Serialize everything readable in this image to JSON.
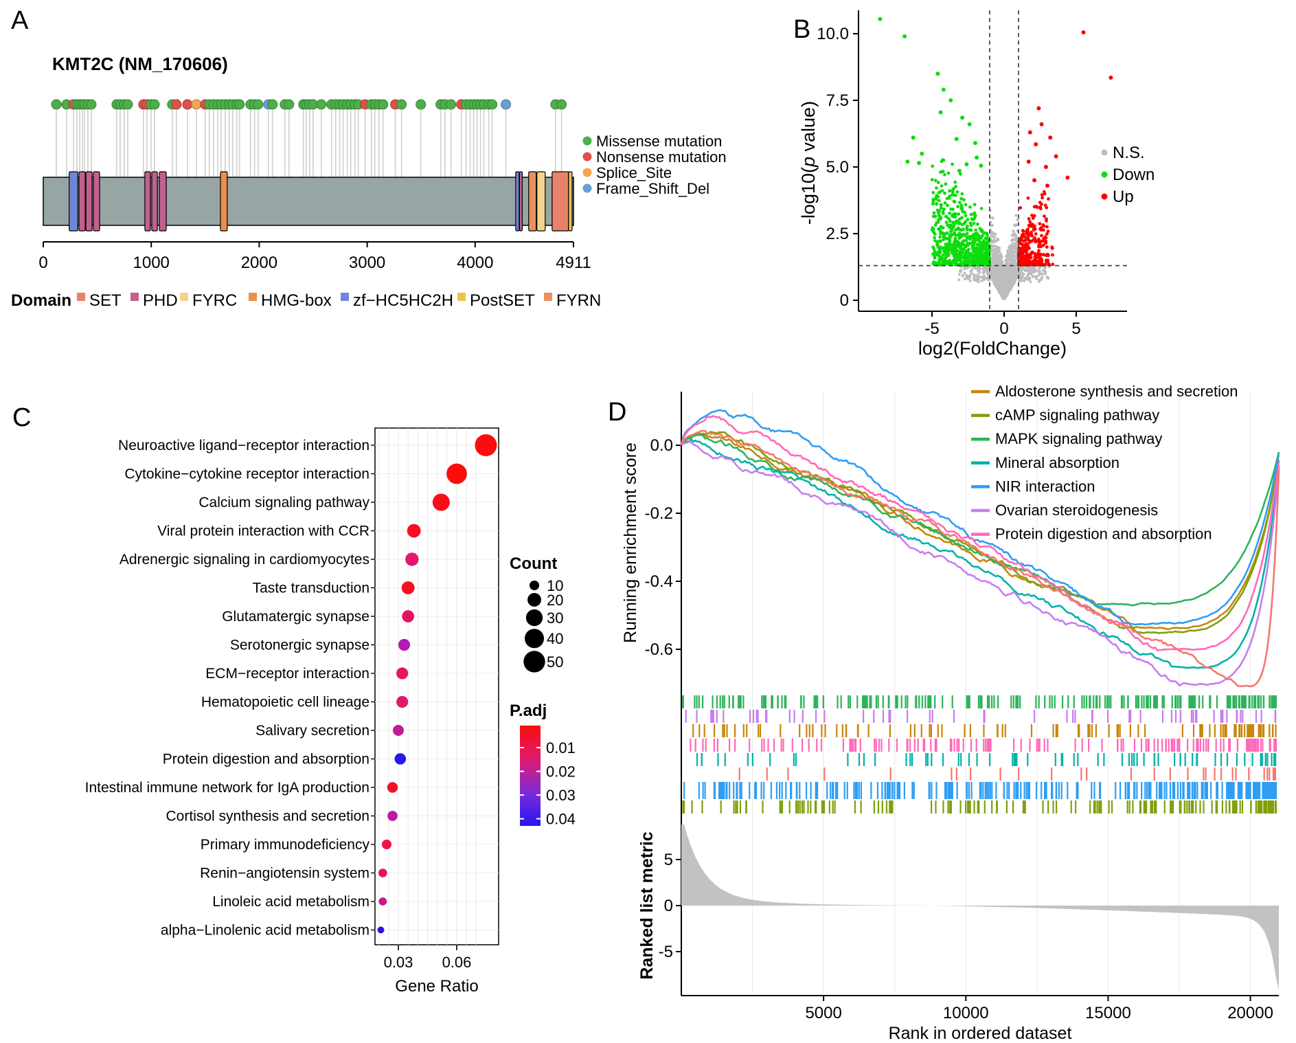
{
  "figure": {
    "background": "#ffffff"
  },
  "chart_data": [
    {
      "type": "lollipop",
      "panel_label": "A",
      "title": "KMT2C (NM_170606)",
      "protein_length": 4911,
      "x_ticks": [
        {
          "v": 0,
          "label": "0"
        },
        {
          "v": 1000,
          "label": "1000"
        },
        {
          "v": 2000,
          "label": "2000"
        },
        {
          "v": 3000,
          "label": "3000"
        },
        {
          "v": 4000,
          "label": "4000"
        },
        {
          "v": 4911,
          "label": "4911"
        }
      ],
      "mutation_types": [
        {
          "key": "missense",
          "label": "Missense mutation",
          "color": "#4caf4a"
        },
        {
          "key": "nonsense",
          "label": "Nonsense mutation",
          "color": "#e0504a"
        },
        {
          "key": "splice",
          "label": "Splice_Site",
          "color": "#f5a54c"
        },
        {
          "key": "frameshift",
          "label": "Frame_Shift_Del",
          "color": "#6b9ed6"
        }
      ],
      "domain_legend_title": "Domain",
      "domain_types": [
        {
          "key": "SET",
          "label": "SET",
          "color": "#e8826b"
        },
        {
          "key": "PHD",
          "label": "PHD",
          "color": "#c2608e"
        },
        {
          "key": "FYRC",
          "label": "FYRC",
          "color": "#f2d58a"
        },
        {
          "key": "HMG-box",
          "label": "HMG-box",
          "color": "#ed8d4c"
        },
        {
          "key": "zf-HC5HC2H",
          "label": "zf−HC5HC2H",
          "color": "#6f86d8"
        },
        {
          "key": "PostSET",
          "label": "PostSET",
          "color": "#f0c050"
        },
        {
          "key": "FYRN",
          "label": "FYRN",
          "color": "#e8915e"
        }
      ],
      "bar_color": "#97a6a4",
      "domains": [
        {
          "type": "zf-HC5HC2H",
          "start": 240,
          "end": 320
        },
        {
          "type": "PHD",
          "start": 331,
          "end": 388
        },
        {
          "type": "PHD",
          "start": 395,
          "end": 452
        },
        {
          "type": "PHD",
          "start": 464,
          "end": 522
        },
        {
          "type": "PHD",
          "start": 941,
          "end": 992
        },
        {
          "type": "PHD",
          "start": 1005,
          "end": 1057
        },
        {
          "type": "PHD",
          "start": 1075,
          "end": 1139
        },
        {
          "type": "HMG-box",
          "start": 1641,
          "end": 1704
        },
        {
          "type": "zf-HC5HC2H",
          "start": 4376,
          "end": 4408
        },
        {
          "type": "PHD",
          "start": 4411,
          "end": 4433
        },
        {
          "type": "FYRN",
          "start": 4496,
          "end": 4566
        },
        {
          "type": "FYRC",
          "start": 4572,
          "end": 4649
        },
        {
          "type": "SET",
          "start": 4713,
          "end": 4865
        },
        {
          "type": "PostSET",
          "start": 4865,
          "end": 4898
        }
      ],
      "mutations": [
        {
          "pos": 121,
          "type": "missense"
        },
        {
          "pos": 216,
          "type": "missense"
        },
        {
          "pos": 280,
          "type": "nonsense"
        },
        {
          "pos": 311,
          "type": "missense"
        },
        {
          "pos": 337,
          "type": "missense"
        },
        {
          "pos": 362,
          "type": "missense"
        },
        {
          "pos": 382,
          "type": "missense"
        },
        {
          "pos": 413,
          "type": "missense"
        },
        {
          "pos": 445,
          "type": "missense"
        },
        {
          "pos": 680,
          "type": "missense"
        },
        {
          "pos": 712,
          "type": "missense"
        },
        {
          "pos": 750,
          "type": "missense"
        },
        {
          "pos": 782,
          "type": "missense"
        },
        {
          "pos": 928,
          "type": "nonsense"
        },
        {
          "pos": 960,
          "type": "nonsense"
        },
        {
          "pos": 998,
          "type": "missense"
        },
        {
          "pos": 1030,
          "type": "missense"
        },
        {
          "pos": 1195,
          "type": "missense"
        },
        {
          "pos": 1233,
          "type": "nonsense"
        },
        {
          "pos": 1335,
          "type": "nonsense"
        },
        {
          "pos": 1418,
          "type": "splice"
        },
        {
          "pos": 1500,
          "type": "nonsense"
        },
        {
          "pos": 1538,
          "type": "missense"
        },
        {
          "pos": 1577,
          "type": "missense"
        },
        {
          "pos": 1615,
          "type": "missense"
        },
        {
          "pos": 1647,
          "type": "missense"
        },
        {
          "pos": 1685,
          "type": "missense"
        },
        {
          "pos": 1722,
          "type": "missense"
        },
        {
          "pos": 1754,
          "type": "missense"
        },
        {
          "pos": 1792,
          "type": "missense"
        },
        {
          "pos": 1818,
          "type": "missense"
        },
        {
          "pos": 1920,
          "type": "missense"
        },
        {
          "pos": 1957,
          "type": "missense"
        },
        {
          "pos": 1990,
          "type": "missense"
        },
        {
          "pos": 2085,
          "type": "frameshift"
        },
        {
          "pos": 2123,
          "type": "missense"
        },
        {
          "pos": 2238,
          "type": "missense"
        },
        {
          "pos": 2276,
          "type": "missense"
        },
        {
          "pos": 2409,
          "type": "missense"
        },
        {
          "pos": 2435,
          "type": "missense"
        },
        {
          "pos": 2466,
          "type": "missense"
        },
        {
          "pos": 2499,
          "type": "missense"
        },
        {
          "pos": 2575,
          "type": "missense"
        },
        {
          "pos": 2670,
          "type": "missense"
        },
        {
          "pos": 2708,
          "type": "missense"
        },
        {
          "pos": 2746,
          "type": "missense"
        },
        {
          "pos": 2778,
          "type": "missense"
        },
        {
          "pos": 2816,
          "type": "missense"
        },
        {
          "pos": 2848,
          "type": "missense"
        },
        {
          "pos": 2886,
          "type": "missense"
        },
        {
          "pos": 2918,
          "type": "missense"
        },
        {
          "pos": 2981,
          "type": "nonsense"
        },
        {
          "pos": 3039,
          "type": "missense"
        },
        {
          "pos": 3071,
          "type": "missense"
        },
        {
          "pos": 3109,
          "type": "missense"
        },
        {
          "pos": 3147,
          "type": "missense"
        },
        {
          "pos": 3261,
          "type": "nonsense"
        },
        {
          "pos": 3318,
          "type": "missense"
        },
        {
          "pos": 3497,
          "type": "missense"
        },
        {
          "pos": 3681,
          "type": "missense"
        },
        {
          "pos": 3720,
          "type": "missense"
        },
        {
          "pos": 3776,
          "type": "missense"
        },
        {
          "pos": 3872,
          "type": "nonsense"
        },
        {
          "pos": 3916,
          "type": "missense"
        },
        {
          "pos": 3954,
          "type": "missense"
        },
        {
          "pos": 3986,
          "type": "missense"
        },
        {
          "pos": 4018,
          "type": "missense"
        },
        {
          "pos": 4050,
          "type": "missense"
        },
        {
          "pos": 4081,
          "type": "missense"
        },
        {
          "pos": 4126,
          "type": "missense"
        },
        {
          "pos": 4158,
          "type": "missense"
        },
        {
          "pos": 4285,
          "type": "frameshift"
        },
        {
          "pos": 4745,
          "type": "missense"
        },
        {
          "pos": 4800,
          "type": "missense"
        }
      ]
    },
    {
      "type": "scatter",
      "panel_label": "B",
      "xlabel": "log2(FoldChange)",
      "ylabel_parts": [
        "-log10(",
        "p",
        " value)"
      ],
      "x_ticks": [
        {
          "v": -5,
          "label": "-5"
        },
        {
          "v": 0,
          "label": "0"
        },
        {
          "v": 5,
          "label": "5"
        }
      ],
      "y_ticks": [
        {
          "v": 0,
          "label": "0"
        },
        {
          "v": 2.5,
          "label": "2.5"
        },
        {
          "v": 5,
          "label": "5.0"
        },
        {
          "v": 7.5,
          "label": "7.5"
        },
        {
          "v": 10,
          "label": "10.0"
        }
      ],
      "threshold_x": [
        -1,
        1
      ],
      "threshold_y": 1.3,
      "legend": [
        {
          "label": "N.S.",
          "color": "#bdbdbd"
        },
        {
          "label": "Down",
          "color": "#0ddc0d"
        },
        {
          "label": "Up",
          "color": "#fe0000"
        }
      ],
      "cloud_counts": {
        "ns": 2350,
        "down": 760,
        "up": 300
      },
      "outliers_down": [
        [
          -8.6,
          10.55
        ],
        [
          -6.9,
          9.9
        ],
        [
          -4.6,
          8.5
        ],
        [
          -4.2,
          7.9
        ],
        [
          -3.7,
          7.5
        ],
        [
          -4.4,
          7.05
        ],
        [
          -2.9,
          6.85
        ],
        [
          -2.4,
          6.6
        ],
        [
          -6.3,
          6.1
        ],
        [
          -3.3,
          6.05
        ],
        [
          -2.0,
          5.9
        ],
        [
          -5.7,
          5.5
        ],
        [
          -6.7,
          5.2
        ],
        [
          -1.9,
          5.35
        ],
        [
          -2.6,
          5.1
        ],
        [
          -3.1,
          4.85
        ],
        [
          -1.6,
          5.05
        ],
        [
          -5.9,
          5.15
        ]
      ],
      "outliers_up": [
        [
          5.5,
          10.05
        ],
        [
          7.4,
          8.35
        ],
        [
          2.4,
          7.2
        ],
        [
          2.6,
          6.6
        ],
        [
          1.8,
          6.3
        ],
        [
          3.2,
          6.1
        ],
        [
          2.2,
          5.85
        ],
        [
          3.6,
          5.4
        ],
        [
          1.7,
          5.2
        ],
        [
          2.9,
          5.0
        ],
        [
          4.4,
          4.6
        ],
        [
          2.1,
          4.5
        ],
        [
          3.0,
          4.3
        ]
      ]
    },
    {
      "type": "bubble",
      "panel_label": "C",
      "xlabel": "Gene Ratio",
      "x_ticks": [
        {
          "v": 0.03,
          "label": "0.03"
        },
        {
          "v": 0.06,
          "label": "0.06"
        }
      ],
      "count_legend": {
        "title": "Count",
        "values": [
          10,
          20,
          30,
          40,
          50
        ]
      },
      "padj_legend": {
        "title": "P.adj",
        "ticks": [
          {
            "v": 0.01,
            "label": "0.01"
          },
          {
            "v": 0.02,
            "label": "0.02"
          },
          {
            "v": 0.03,
            "label": "0.03"
          },
          {
            "v": 0.04,
            "label": "0.04"
          }
        ],
        "gradient": [
          "#fb0d0d",
          "#e01a6e",
          "#7d2bd8",
          "#2717f2"
        ]
      },
      "pathways": [
        {
          "name": "Neuroactive ligand−receptor interaction",
          "gene_ratio": 0.075,
          "count": 52,
          "p_adj": 0.003,
          "color": "#fb0d0d"
        },
        {
          "name": "Cytokine−cytokine receptor interaction",
          "gene_ratio": 0.06,
          "count": 45,
          "p_adj": 0.003,
          "color": "#fb0d0d"
        },
        {
          "name": "Calcium signaling pathway",
          "gene_ratio": 0.052,
          "count": 32,
          "p_adj": 0.004,
          "color": "#fa0d17"
        },
        {
          "name": "Viral protein interaction with CCR",
          "gene_ratio": 0.038,
          "count": 20,
          "p_adj": 0.005,
          "color": "#f80e22"
        },
        {
          "name": "Adrenergic signaling in cardiomyocytes",
          "gene_ratio": 0.037,
          "count": 19,
          "p_adj": 0.013,
          "color": "#e1186b"
        },
        {
          "name": "Taste transduction",
          "gene_ratio": 0.035,
          "count": 18,
          "p_adj": 0.005,
          "color": "#f80e22"
        },
        {
          "name": "Glutamatergic synapse",
          "gene_ratio": 0.035,
          "count": 16,
          "p_adj": 0.012,
          "color": "#e31560"
        },
        {
          "name": "Serotonergic synapse",
          "gene_ratio": 0.033,
          "count": 15,
          "p_adj": 0.024,
          "color": "#b41ab4"
        },
        {
          "name": "ECM−receptor interaction",
          "gene_ratio": 0.032,
          "count": 15,
          "p_adj": 0.011,
          "color": "#e8175d"
        },
        {
          "name": "Hematopoietic cell lineage",
          "gene_ratio": 0.032,
          "count": 15,
          "p_adj": 0.012,
          "color": "#e0186a"
        },
        {
          "name": "Salivary secretion",
          "gene_ratio": 0.03,
          "count": 13,
          "p_adj": 0.022,
          "color": "#c11c96"
        },
        {
          "name": "Protein digestion and absorption",
          "gene_ratio": 0.031,
          "count": 14,
          "p_adj": 0.04,
          "color": "#2417ef"
        },
        {
          "name": "Intestinal immune network for IgA production",
          "gene_ratio": 0.027,
          "count": 12,
          "p_adj": 0.006,
          "color": "#f70f28"
        },
        {
          "name": "Cortisol synthesis and secretion",
          "gene_ratio": 0.027,
          "count": 11,
          "p_adj": 0.023,
          "color": "#bb1aa4"
        },
        {
          "name": "Primary immunodeficiency",
          "gene_ratio": 0.024,
          "count": 10,
          "p_adj": 0.01,
          "color": "#ed1446"
        },
        {
          "name": "Renin−angiotensin system",
          "gene_ratio": 0.022,
          "count": 8,
          "p_adj": 0.012,
          "color": "#e81551"
        },
        {
          "name": "Linoleic acid metabolism",
          "gene_ratio": 0.022,
          "count": 7,
          "p_adj": 0.021,
          "color": "#c61c8c"
        },
        {
          "name": "alpha−Linolenic acid metabolism",
          "gene_ratio": 0.021,
          "count": 5,
          "p_adj": 0.038,
          "color": "#2b14e4"
        }
      ]
    },
    {
      "type": "line",
      "panel_label": "D",
      "ylabel": "Running enrichment score",
      "ylabel2": "Ranked list metric",
      "xlabel": "Rank in ordered dataset",
      "x_max": 21000,
      "x_ticks": [
        {
          "v": 5000,
          "label": "5000"
        },
        {
          "v": 10000,
          "label": "10000"
        },
        {
          "v": 15000,
          "label": "15000"
        },
        {
          "v": 20000,
          "label": "20000"
        }
      ],
      "es_ticks": [
        {
          "v": 0,
          "label": "0.0"
        },
        {
          "v": -0.2,
          "label": "-0.2"
        },
        {
          "v": -0.4,
          "label": "-0.4"
        },
        {
          "v": -0.6,
          "label": "-0.6"
        }
      ],
      "metric_ticks": [
        {
          "v": 5,
          "label": "5"
        },
        {
          "v": 0,
          "label": "0"
        },
        {
          "v": -5,
          "label": "-5"
        }
      ],
      "series": [
        {
          "name": "Aldosterone synthesis and secretion",
          "color": "#c8860b",
          "peak": 0.032,
          "peak_x": 600,
          "min": -0.54,
          "min_x": 15800,
          "end": -0.05,
          "in_legend": true
        },
        {
          "name": "cAMP signaling pathway",
          "color": "#7ea10c",
          "peak": 0.035,
          "peak_x": 800,
          "min": -0.55,
          "min_x": 16000,
          "end": -0.04,
          "in_legend": true
        },
        {
          "name": "MAPK signaling pathway",
          "color": "#2db45a",
          "peak": 0.02,
          "peak_x": 400,
          "min": -0.465,
          "min_x": 14600,
          "end": -0.02,
          "in_legend": true
        },
        {
          "name": "Mineral absorption",
          "color": "#00b2a9",
          "peak": 0.01,
          "peak_x": 300,
          "min": -0.655,
          "min_x": 17200,
          "end": -0.06,
          "in_legend": true
        },
        {
          "name": "NIR interaction",
          "color": "#2f9df4",
          "peak": 0.105,
          "peak_x": 1300,
          "min": -0.525,
          "min_x": 15600,
          "end": -0.03,
          "in_legend": true
        },
        {
          "name": "Ovarian steroidogenesis",
          "color": "#c77df2",
          "peak": 0.005,
          "peak_x": 200,
          "min": -0.7,
          "min_x": 17600,
          "end": -0.07,
          "in_legend": true
        },
        {
          "name": "Protein digestion and absorption",
          "color": "#ff69b8",
          "peak": 0.075,
          "peak_x": 900,
          "min": -0.6,
          "min_x": 16800,
          "end": -0.05,
          "in_legend": true
        },
        {
          "name": "",
          "color": "#f8766d",
          "peak": 0.04,
          "peak_x": 700,
          "min": -0.71,
          "min_x": 19600,
          "end": -0.07,
          "in_legend": false
        }
      ],
      "rug_rows": [
        {
          "color": "#2db45a",
          "count": 210,
          "h": 19
        },
        {
          "color": "#c77df2",
          "count": 60,
          "h": 19
        },
        {
          "color": "#c8860b",
          "count": 95,
          "h": 19
        },
        {
          "color": "#ff69b8",
          "count": 130,
          "h": 19
        },
        {
          "color": "#00b2a9",
          "count": 70,
          "h": 19
        },
        {
          "color": "#f8766d",
          "count": 30,
          "h": 19
        },
        {
          "color": "#2f9df4",
          "count": 260,
          "h": 25
        },
        {
          "color": "#7ea10c",
          "count": 160,
          "h": 19
        }
      ],
      "metric_area_color": "#c2c2c2"
    }
  ]
}
